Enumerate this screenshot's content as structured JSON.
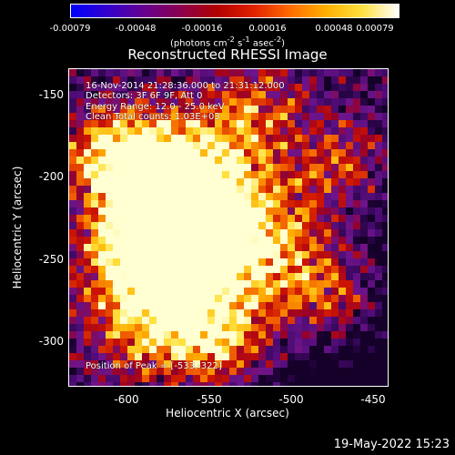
{
  "title": "Reconstructed RHESSI Image",
  "colorbar": {
    "ticks": [
      "-0.00079",
      "-0.00048",
      "-0.00016",
      "0.00016",
      "0.00048",
      "0.00079"
    ],
    "units_main": "(photons cm",
    "units_sup1": "-2",
    "units_mid1": " s",
    "units_sup2": "-1",
    "units_mid2": " asec",
    "units_sup3": "-2",
    "units_end": ")",
    "colors": [
      "#0000ff",
      "#3300cc",
      "#66008f",
      "#8b0050",
      "#b00000",
      "#e02000",
      "#ff6a00",
      "#ffb000",
      "#ffe040",
      "#ffffff"
    ]
  },
  "info": {
    "time_range": "16-Nov-2014 21:28:36.000 to 21:31:12.000",
    "detectors": "Detectors: 3F 6F 9F, Att 0",
    "energy": "Energy Range: 12.0 - 25.0 keV",
    "clean": "Clean    Total counts: 1.03E+03",
    "peak": "Position of Peak = [-533,-322]"
  },
  "axes": {
    "xlabel": "Heliocentric X (arcsec)",
    "ylabel": "Heliocentric Y (arcsec)",
    "xticks": [
      "-600",
      "-550",
      "-500",
      "-450"
    ],
    "yticks": [
      "-150",
      "-200",
      "-250",
      "-300"
    ]
  },
  "timestamp": "19-May-2022 15:23"
}
